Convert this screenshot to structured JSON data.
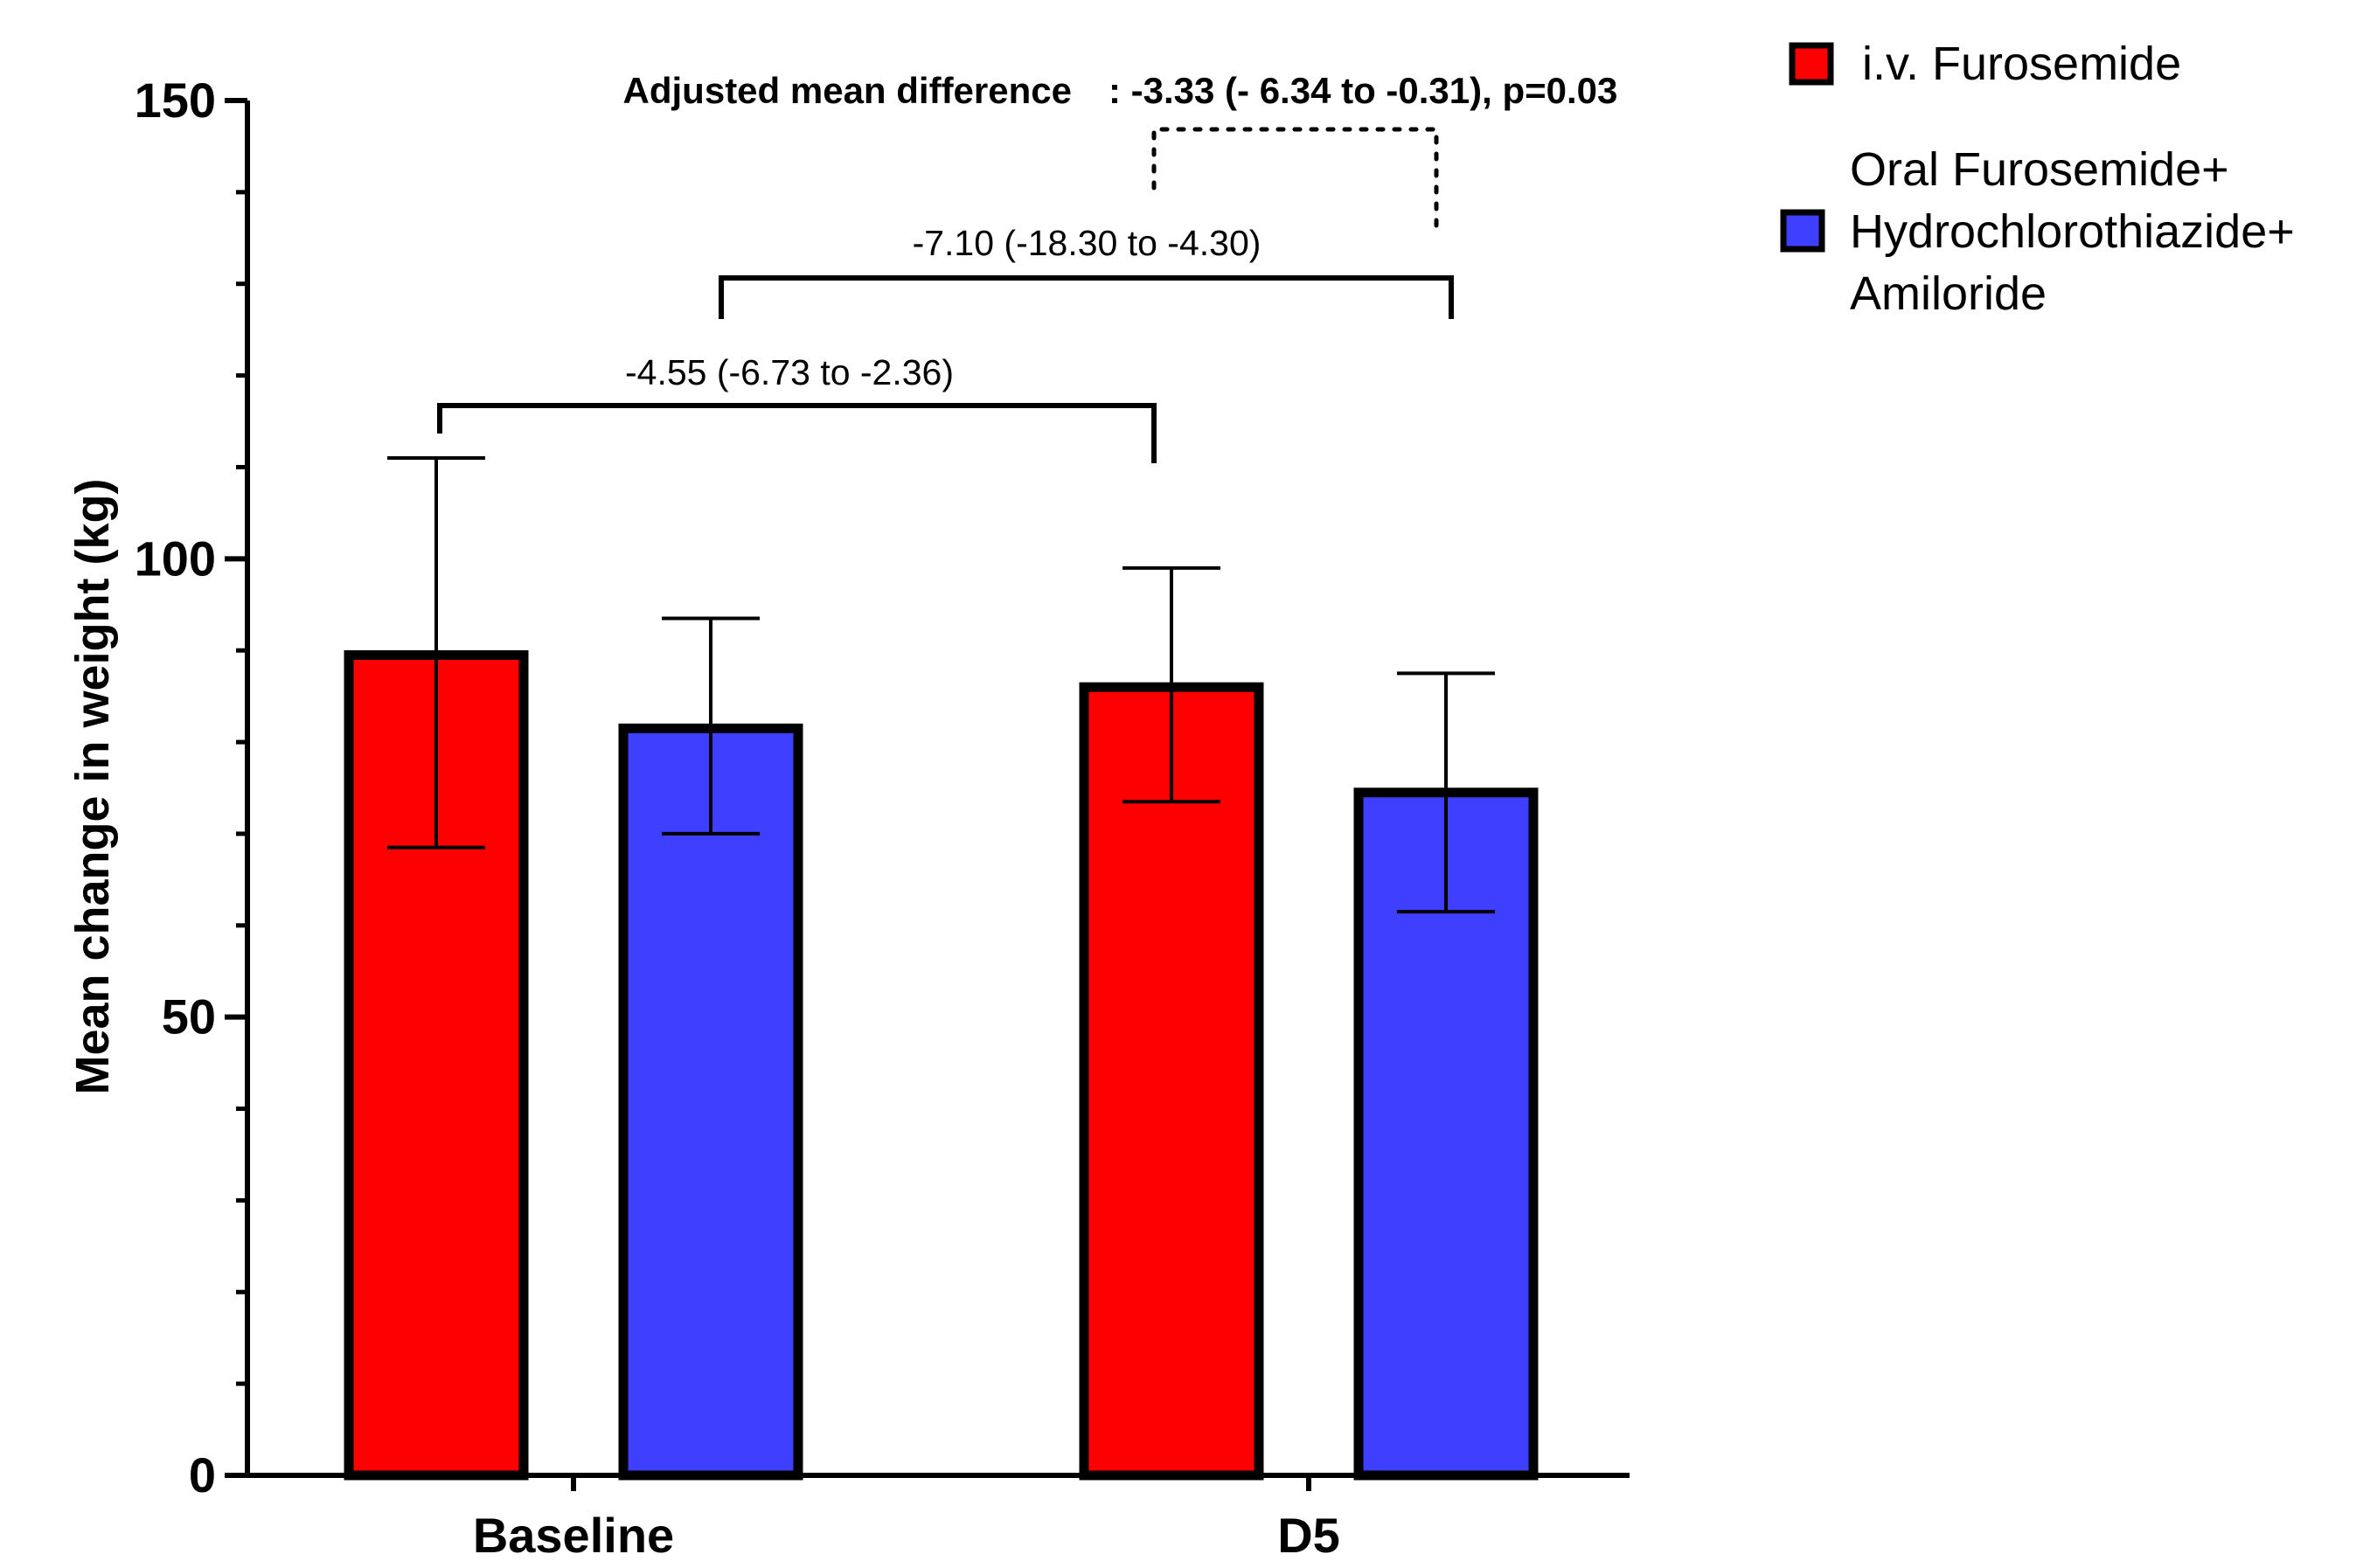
{
  "chart_data": {
    "type": "bar",
    "title": "",
    "xlabel": "",
    "ylabel": "Mean change in weight  (kg)",
    "ylim": [
      0,
      150
    ],
    "y_major_ticks": [
      "0",
      "50",
      "100",
      "150"
    ],
    "y_minor_step": 10,
    "categories": [
      "Baseline",
      "D5"
    ],
    "series": [
      {
        "name": "i.v. Furosemide",
        "color": "#ff0000",
        "values": [
          89.5,
          86
        ],
        "err_low": [
          68.5,
          73.5
        ],
        "err_high": [
          111,
          99
        ]
      },
      {
        "name": "Oral Furosemide+ Hydrochlorothiazide+ Amiloride",
        "legend_lines": [
          "Oral Furosemide+",
          "Hydrochlorothiazide+",
          "Amiloride"
        ],
        "color": "#3f3fff",
        "values": [
          81.5,
          74.5
        ],
        "err_low": [
          70,
          61.5
        ],
        "err_high": [
          93.5,
          87.5
        ]
      }
    ],
    "annotations": {
      "adjusted_label": "Adjusted mean difference",
      "adjusted_value": ": -3.33 (- 6.34 to -0.31), p=0.03",
      "comparison_1": "-4.55 (-6.73 to -2.36)",
      "comparison_2": "-7.10 (-18.30 to -4.30)"
    }
  }
}
